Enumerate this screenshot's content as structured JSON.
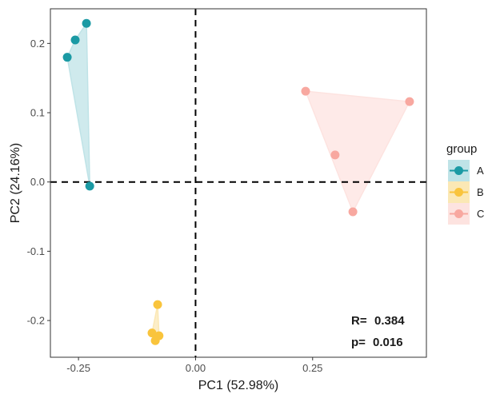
{
  "chart_data": {
    "type": "scatter",
    "xlabel": "PC1 (52.98%)",
    "ylabel": "PC2 (24.16%)",
    "xlim": [
      -0.31,
      0.493
    ],
    "ylim": [
      -0.253,
      0.25
    ],
    "x_ticks": [
      -0.25,
      0.0,
      0.25
    ],
    "x_tick_labels": [
      "-0.25",
      "0.00",
      "0.25"
    ],
    "y_ticks": [
      -0.2,
      -0.1,
      0.0,
      0.1,
      0.2
    ],
    "y_tick_labels": [
      "-0.2",
      "-0.1",
      "0.0",
      "0.1",
      "0.2"
    ],
    "grid": false,
    "reference_lines": [
      {
        "axis": "x",
        "value": 0.0,
        "style": "dashed"
      },
      {
        "axis": "y",
        "value": 0.0,
        "style": "dashed"
      }
    ],
    "legend": {
      "title": "group",
      "position": "right"
    },
    "series": [
      {
        "name": "A",
        "color": "#1b9aa4",
        "fill": "#bfe3e7",
        "points": [
          [
            -0.233,
            0.229
          ],
          [
            -0.257,
            0.205
          ],
          [
            -0.274,
            0.18
          ],
          [
            -0.226,
            -0.006
          ]
        ]
      },
      {
        "name": "B",
        "color": "#f9c43c",
        "fill": "#fbe8b5",
        "points": [
          [
            -0.081,
            -0.177
          ],
          [
            -0.093,
            -0.218
          ],
          [
            -0.078,
            -0.222
          ],
          [
            -0.086,
            -0.229
          ]
        ]
      },
      {
        "name": "C",
        "color": "#f8a8a0",
        "fill": "#fde3e0",
        "points": [
          [
            0.235,
            0.131
          ],
          [
            0.457,
            0.116
          ],
          [
            0.298,
            0.039
          ],
          [
            0.336,
            -0.043
          ]
        ]
      }
    ],
    "annotations": [
      {
        "label": "R=",
        "value": "0.384"
      },
      {
        "label": "p=",
        "value": "0.016"
      }
    ]
  }
}
